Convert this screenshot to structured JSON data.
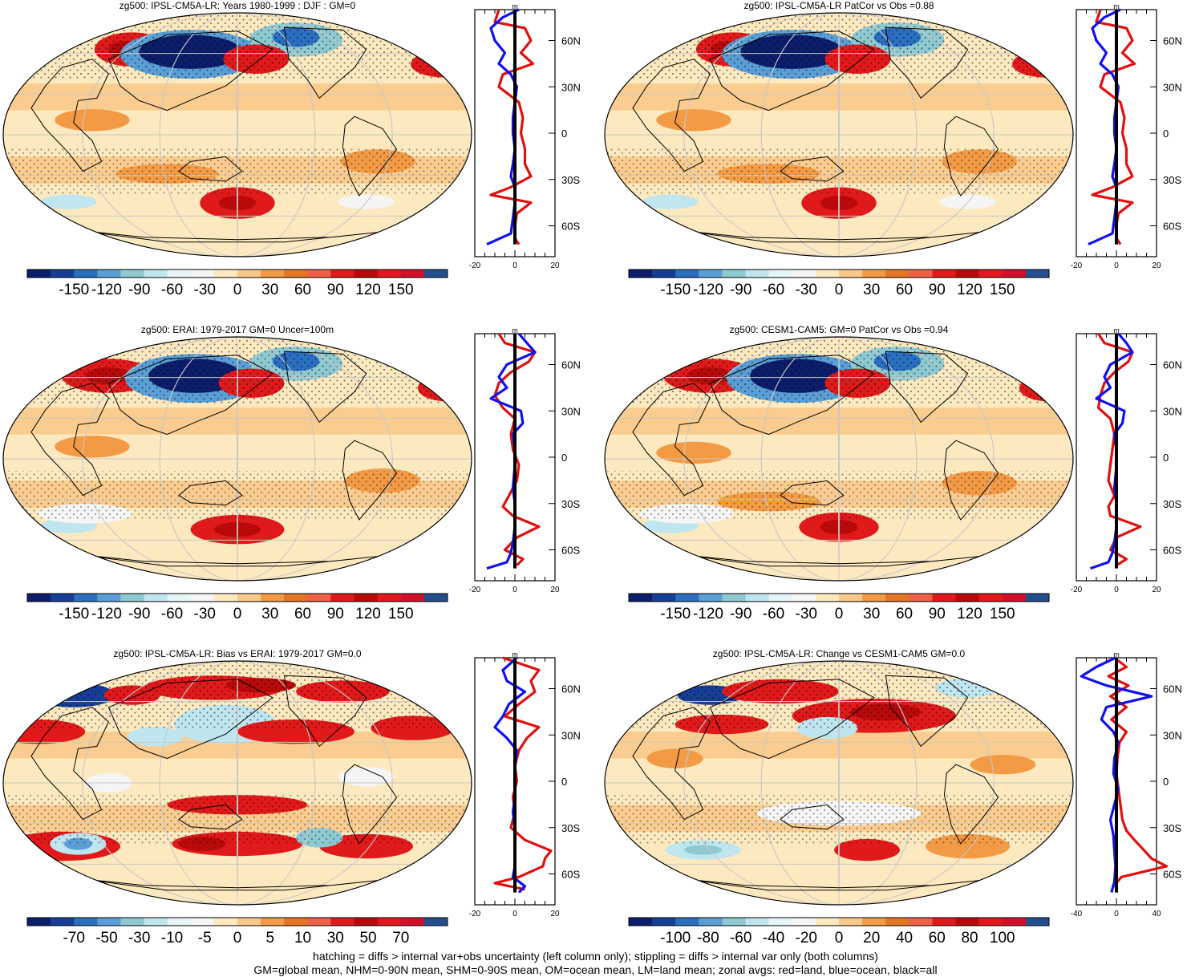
{
  "figure": {
    "colors": {
      "positive_land": "#e01010",
      "negative_ocean": "#1010f0",
      "all_mean": "#000000",
      "map_grid": "#c8c8c8",
      "coast": "#000000"
    },
    "footnote_line1": "hatching = diffs > internal var+obs uncertainty (left column only); stippling = diffs > internal var only (both columns)",
    "footnote_line2": "GM=global mean, NHM=0-90N mean, SHM=0-90S mean, OM=ocean mean, LM=land mean; zonal avgs: red=land, blue=ocean, black=all"
  },
  "chart_data": [
    {
      "type": "heatmap",
      "title": "zg500: IPSL-CM5A-LR: Years 1980-1999 : DJF : GM=0",
      "colorbar_palette": [
        "#0b1d6b",
        "#163e98",
        "#2a6fc0",
        "#5a9ed6",
        "#8ec9d2",
        "#bfe6ef",
        "#e6f6f8",
        "#f5f5f5",
        "#fde9bf",
        "#f9c98a",
        "#f39a45",
        "#e57522",
        "#f06045",
        "#e01a1a",
        "#b80a0a",
        "#e3171d",
        "#d3102a",
        "#234f8f"
      ],
      "colorbar_labels": [
        "-150",
        "-120",
        "-90",
        "-60",
        "-30",
        "0",
        "30",
        "60",
        "90",
        "120",
        "150"
      ],
      "colorbar_range": [
        -150,
        150
      ],
      "zonal_profile": {
        "xlim": [
          -20,
          20
        ],
        "xticks": [
          "-20",
          "0",
          "20"
        ],
        "units": "m",
        "lat_labels": [
          "60N",
          "30N",
          "0",
          "30S",
          "60S"
        ],
        "lat_values": [
          60,
          30,
          0,
          -30,
          -60
        ],
        "series": [
          {
            "name": "land",
            "color": "red",
            "lat": [
              80,
              72,
              68,
              60,
              52,
              45,
              38,
              30,
              20,
              10,
              0,
              -10,
              -20,
              -28,
              -35,
              -40,
              -45,
              -52,
              -60,
              -68,
              -72
            ],
            "values": [
              -8,
              -10,
              5,
              8,
              3,
              9,
              -6,
              -8,
              2,
              4,
              3,
              5,
              5,
              8,
              -2,
              -12,
              8,
              1,
              0,
              0,
              2
            ]
          },
          {
            "name": "ocean",
            "color": "blue",
            "lat": [
              80,
              75,
              68,
              60,
              52,
              45,
              38,
              30,
              20,
              10,
              0,
              -10,
              -20,
              -28,
              -35,
              -45,
              -55,
              -65,
              -72
            ],
            "values": [
              2,
              -6,
              -12,
              -10,
              -5,
              -8,
              -2,
              1,
              0,
              -1,
              -1,
              0,
              -1,
              -2,
              0,
              0,
              -1,
              -2,
              -14
            ]
          },
          {
            "name": "all",
            "color": "black",
            "lat": [
              80,
              0,
              -72
            ],
            "values": [
              0,
              0,
              0
            ]
          }
        ]
      }
    },
    {
      "type": "heatmap",
      "title": "zg500: IPSL-CM5A-LR PatCor vs Obs =0.88",
      "colorbar_palette": [
        "#0b1d6b",
        "#163e98",
        "#2a6fc0",
        "#5a9ed6",
        "#8ec9d2",
        "#bfe6ef",
        "#e6f6f8",
        "#f5f5f5",
        "#fde9bf",
        "#f9c98a",
        "#f39a45",
        "#e57522",
        "#f06045",
        "#e01a1a",
        "#b80a0a",
        "#e3171d",
        "#d3102a",
        "#234f8f"
      ],
      "colorbar_labels": [
        "-150",
        "-120",
        "-90",
        "-60",
        "-30",
        "0",
        "30",
        "60",
        "90",
        "120",
        "150"
      ],
      "colorbar_range": [
        -150,
        150
      ],
      "zonal_profile": {
        "xlim": [
          -20,
          20
        ],
        "xticks": [
          "-20",
          "0",
          "20"
        ],
        "units": "m",
        "lat_labels": [
          "60N",
          "30N",
          "0",
          "30S",
          "60S"
        ],
        "lat_values": [
          60,
          30,
          0,
          -30,
          -60
        ],
        "series": [
          {
            "name": "land",
            "color": "red",
            "lat": [
              80,
              72,
              68,
              60,
              52,
              45,
              38,
              30,
              20,
              10,
              0,
              -10,
              -20,
              -28,
              -35,
              -40,
              -45,
              -52,
              -60,
              -68,
              -72
            ],
            "values": [
              -8,
              -10,
              5,
              8,
              3,
              9,
              -6,
              -8,
              2,
              4,
              3,
              5,
              5,
              8,
              -2,
              -12,
              8,
              1,
              0,
              0,
              2
            ]
          },
          {
            "name": "ocean",
            "color": "blue",
            "lat": [
              80,
              75,
              68,
              60,
              52,
              45,
              38,
              30,
              20,
              10,
              0,
              -10,
              -20,
              -28,
              -35,
              -45,
              -55,
              -65,
              -72
            ],
            "values": [
              2,
              -6,
              -12,
              -10,
              -5,
              -8,
              -2,
              1,
              0,
              -1,
              -1,
              0,
              -1,
              -2,
              0,
              0,
              -1,
              -2,
              -14
            ]
          },
          {
            "name": "all",
            "color": "black",
            "lat": [
              80,
              0,
              -72
            ],
            "values": [
              0,
              0,
              0
            ]
          }
        ]
      }
    },
    {
      "type": "heatmap",
      "title": "zg500: ERAI: 1979-2017 GM=0 Uncer=100m",
      "colorbar_palette": [
        "#0b1d6b",
        "#163e98",
        "#2a6fc0",
        "#5a9ed6",
        "#8ec9d2",
        "#bfe6ef",
        "#e6f6f8",
        "#f5f5f5",
        "#fde9bf",
        "#f9c98a",
        "#f39a45",
        "#e57522",
        "#f06045",
        "#e01a1a",
        "#b80a0a",
        "#e3171d",
        "#d3102a",
        "#234f8f"
      ],
      "colorbar_labels": [
        "-150",
        "-120",
        "-90",
        "-60",
        "-30",
        "0",
        "30",
        "60",
        "90",
        "120",
        "150"
      ],
      "colorbar_range": [
        -150,
        150
      ],
      "zonal_profile": {
        "xlim": [
          -20,
          20
        ],
        "xticks": [
          "-20",
          "0",
          "20"
        ],
        "units": "m",
        "lat_labels": [
          "60N",
          "30N",
          "0",
          "30S",
          "60S"
        ],
        "lat_values": [
          60,
          30,
          0,
          -30,
          -60
        ],
        "series": [
          {
            "name": "land",
            "color": "red",
            "lat": [
              80,
              74,
              68,
              62,
              55,
              48,
              40,
              32,
              25,
              15,
              5,
              -5,
              -15,
              -25,
              -32,
              -38,
              -45,
              -52,
              -60,
              -66,
              -70
            ],
            "values": [
              -8,
              -5,
              10,
              7,
              -2,
              -8,
              -10,
              -6,
              0,
              -2,
              -1,
              2,
              1,
              -3,
              -6,
              -1,
              12,
              1,
              -5,
              4,
              1
            ]
          },
          {
            "name": "ocean",
            "color": "blue",
            "lat": [
              80,
              74,
              68,
              60,
              52,
              45,
              38,
              30,
              22,
              15,
              5,
              -5,
              -20,
              -30,
              -45,
              -55,
              -62,
              -68,
              -72
            ],
            "values": [
              2,
              6,
              10,
              -4,
              -8,
              -4,
              -12,
              3,
              4,
              -1,
              0,
              0,
              -1,
              0,
              0,
              -1,
              -2,
              -4,
              -14
            ]
          },
          {
            "name": "all",
            "color": "black",
            "lat": [
              80,
              0,
              -72
            ],
            "values": [
              0,
              0,
              0
            ]
          }
        ]
      }
    },
    {
      "type": "heatmap",
      "title": "zg500: CESM1-CAM5: GM=0 PatCor vs Obs =0.94",
      "colorbar_palette": [
        "#0b1d6b",
        "#163e98",
        "#2a6fc0",
        "#5a9ed6",
        "#8ec9d2",
        "#bfe6ef",
        "#e6f6f8",
        "#f5f5f5",
        "#fde9bf",
        "#f9c98a",
        "#f39a45",
        "#e57522",
        "#f06045",
        "#e01a1a",
        "#b80a0a",
        "#e3171d",
        "#d3102a",
        "#234f8f"
      ],
      "colorbar_labels": [
        "-150",
        "-120",
        "-90",
        "-60",
        "-30",
        "0",
        "30",
        "60",
        "90",
        "120",
        "150"
      ],
      "colorbar_range": [
        -150,
        150
      ],
      "zonal_profile": {
        "xlim": [
          -20,
          20
        ],
        "xticks": [
          "-20",
          "0",
          "20"
        ],
        "units": "m",
        "lat_labels": [
          "60N",
          "30N",
          "0",
          "30S",
          "60S"
        ],
        "lat_values": [
          60,
          30,
          0,
          -30,
          -60
        ],
        "series": [
          {
            "name": "land",
            "color": "red",
            "lat": [
              80,
              74,
              68,
              62,
              55,
              48,
              40,
              32,
              25,
              15,
              5,
              -5,
              -15,
              -25,
              -32,
              -38,
              -45,
              -52,
              -60,
              -66,
              -70
            ],
            "values": [
              -9,
              -6,
              8,
              6,
              -1,
              -6,
              -8,
              -9,
              -3,
              -1,
              -2,
              -3,
              -4,
              -1,
              -4,
              -3,
              12,
              0,
              -3,
              5,
              0
            ]
          },
          {
            "name": "ocean",
            "color": "blue",
            "lat": [
              80,
              74,
              68,
              60,
              52,
              45,
              38,
              30,
              22,
              15,
              5,
              -5,
              -20,
              -30,
              -45,
              -55,
              -62,
              -68,
              -72
            ],
            "values": [
              1,
              5,
              8,
              -3,
              -6,
              -3,
              -10,
              4,
              3,
              -1,
              0,
              0,
              -1,
              0,
              0,
              -1,
              -2,
              -4,
              -13
            ]
          },
          {
            "name": "all",
            "color": "black",
            "lat": [
              80,
              0,
              -72
            ],
            "values": [
              0,
              0,
              0
            ]
          }
        ]
      }
    },
    {
      "type": "heatmap",
      "title": "zg500: IPSL-CM5A-LR: Bias vs ERAI: 1979-2017 GM=0.0",
      "colorbar_palette": [
        "#0b1d6b",
        "#163e98",
        "#2a6fc0",
        "#5a9ed6",
        "#8ec9d2",
        "#bfe6ef",
        "#e6f6f8",
        "#f5f5f5",
        "#fde9bf",
        "#f9c98a",
        "#f39a45",
        "#e57522",
        "#f06045",
        "#e01a1a",
        "#b80a0a",
        "#e3171d",
        "#d3102a",
        "#234f8f"
      ],
      "colorbar_labels": [
        "-70",
        "-50",
        "-30",
        "-10",
        "-5",
        "0",
        "5",
        "10",
        "30",
        "50",
        "70"
      ],
      "colorbar_range": [
        -70,
        70
      ],
      "zonal_profile": {
        "xlim": [
          -20,
          20
        ],
        "xticks": [
          "-20",
          "0",
          "20"
        ],
        "units": "m",
        "lat_labels": [
          "60N",
          "30N",
          "0",
          "30S",
          "60S"
        ],
        "lat_values": [
          60,
          30,
          0,
          -30,
          -60
        ],
        "series": [
          {
            "name": "land",
            "color": "red",
            "lat": [
              80,
              72,
              65,
              58,
              50,
              42,
              35,
              28,
              20,
              10,
              0,
              -10,
              -20,
              -30,
              -38,
              -45,
              -50,
              -55,
              -62,
              -66,
              -70
            ],
            "values": [
              -6,
              12,
              8,
              10,
              2,
              -5,
              12,
              6,
              2,
              0,
              1,
              -1,
              0,
              -2,
              5,
              18,
              15,
              14,
              2,
              -10,
              5
            ]
          },
          {
            "name": "ocean",
            "color": "blue",
            "lat": [
              80,
              72,
              65,
              58,
              50,
              42,
              35,
              28,
              20,
              10,
              0,
              -10,
              -20,
              -30,
              -45,
              -55,
              -62,
              -68,
              -72
            ],
            "values": [
              1,
              -6,
              -4,
              5,
              -3,
              -6,
              -10,
              -4,
              1,
              0,
              0,
              0,
              -1,
              0,
              0,
              0,
              -1,
              5,
              2
            ]
          },
          {
            "name": "all",
            "color": "black",
            "lat": [
              80,
              0,
              -72
            ],
            "values": [
              0,
              0,
              0
            ]
          }
        ]
      }
    },
    {
      "type": "heatmap",
      "title": "zg500: IPSL-CM5A-LR: Change vs CESM1-CAM5 GM=0.0",
      "colorbar_palette": [
        "#0b1d6b",
        "#163e98",
        "#2a6fc0",
        "#5a9ed6",
        "#8ec9d2",
        "#bfe6ef",
        "#e6f6f8",
        "#f5f5f5",
        "#fde9bf",
        "#f9c98a",
        "#f39a45",
        "#e57522",
        "#f06045",
        "#e01a1a",
        "#b80a0a",
        "#e3171d",
        "#d3102a",
        "#234f8f"
      ],
      "colorbar_labels": [
        "-100",
        "-80",
        "-60",
        "-40",
        "-20",
        "0",
        "20",
        "40",
        "60",
        "80",
        "100"
      ],
      "colorbar_range": [
        -100,
        100
      ],
      "zonal_profile": {
        "xlim": [
          -40,
          40
        ],
        "xticks": [
          "-40",
          "0",
          "40"
        ],
        "units": "m",
        "lat_labels": [
          "60N",
          "30N",
          "0",
          "30S",
          "60S"
        ],
        "lat_values": [
          60,
          30,
          0,
          -30,
          -60
        ],
        "series": [
          {
            "name": "land",
            "color": "red",
            "lat": [
              80,
              74,
              68,
              62,
              55,
              48,
              40,
              32,
              25,
              15,
              5,
              -5,
              -15,
              -25,
              -32,
              -38,
              -45,
              -50,
              -55,
              -62,
              -68
            ],
            "values": [
              -2,
              10,
              -8,
              12,
              -6,
              10,
              -5,
              10,
              3,
              1,
              0,
              2,
              4,
              6,
              10,
              18,
              28,
              35,
              50,
              5,
              -3
            ]
          },
          {
            "name": "ocean",
            "color": "blue",
            "lat": [
              80,
              74,
              68,
              62,
              55,
              48,
              40,
              32,
              25,
              15,
              5,
              -5,
              -15,
              -25,
              -35,
              -45,
              -55,
              -65,
              -72
            ],
            "values": [
              -1,
              -20,
              -35,
              -10,
              35,
              -10,
              -15,
              -3,
              2,
              -2,
              -3,
              2,
              -2,
              -6,
              -3,
              -2,
              -1,
              -2,
              -5
            ]
          },
          {
            "name": "all",
            "color": "black",
            "lat": [
              80,
              0,
              -72
            ],
            "values": [
              0,
              0,
              0
            ]
          }
        ]
      }
    }
  ]
}
